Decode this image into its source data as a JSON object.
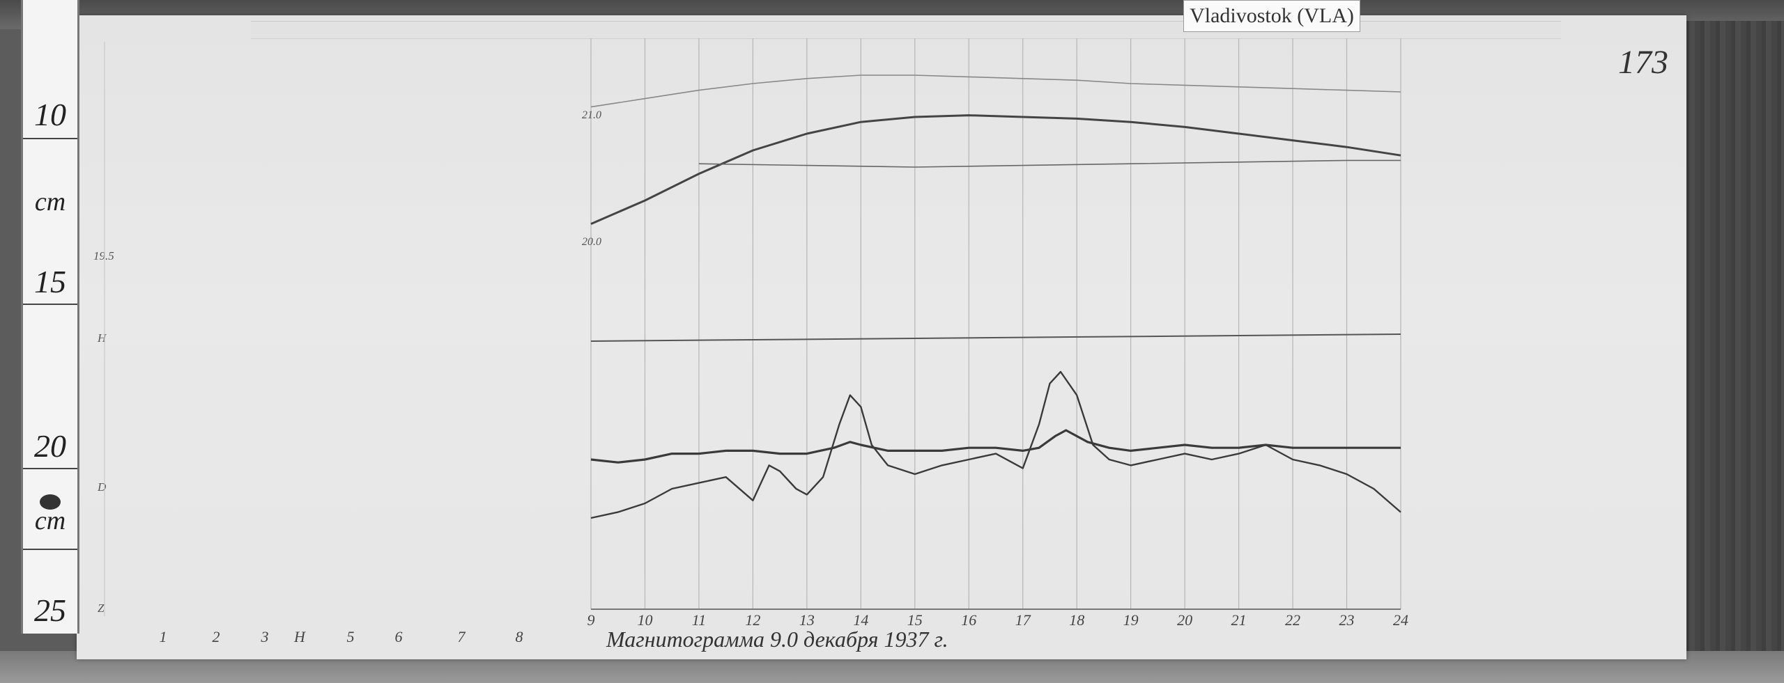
{
  "station": {
    "label": "Vladivostok (VLA)"
  },
  "page_number": "173",
  "caption": "Магнитограмма 9.0 декабря 1937 г.",
  "ruler": {
    "numbers": [
      "10",
      "15",
      "20",
      "25"
    ],
    "unit": "cm"
  },
  "margin_notes": {
    "z_scale": "19.5",
    "h_label": "H",
    "d_label": "D",
    "z_label": "Z"
  },
  "chart_data": {
    "type": "line",
    "title": "",
    "xlabel": "",
    "ylabel": "",
    "x_ticks": [
      "1",
      "2",
      "3",
      "H",
      "5",
      "6",
      "7",
      "8",
      "9",
      "10",
      "11",
      "12",
      "13",
      "14",
      "15",
      "16",
      "17",
      "18",
      "19",
      "20",
      "21",
      "22",
      "23",
      "24"
    ],
    "xlim": [
      9,
      24
    ],
    "panels": [
      {
        "name": "upper",
        "scale_labels": [
          "21.0",
          "20.0"
        ],
        "series": [
          {
            "x": [
              9,
              10,
              11,
              12,
              13,
              14,
              15,
              16,
              17,
              18,
              19,
              20,
              21,
              22,
              23,
              24
            ],
            "y": [
              0.16,
              0.3,
              0.46,
              0.6,
              0.7,
              0.77,
              0.8,
              0.81,
              0.8,
              0.79,
              0.77,
              0.74,
              0.7,
              0.66,
              0.62,
              0.57
            ]
          },
          {
            "x": [
              9,
              10,
              11,
              12,
              13,
              14,
              15,
              16,
              17,
              18,
              19,
              20,
              21,
              22,
              23,
              24
            ],
            "y": [
              0.86,
              0.91,
              0.96,
              1.0,
              1.03,
              1.05,
              1.05,
              1.04,
              1.03,
              1.02,
              1.0,
              0.99,
              0.98,
              0.97,
              0.96,
              0.95
            ]
          },
          {
            "x": [
              11,
              13,
              15,
              17,
              19,
              21,
              23,
              24
            ],
            "y": [
              0.52,
              0.51,
              0.5,
              0.51,
              0.52,
              0.53,
              0.54,
              0.54
            ]
          }
        ]
      },
      {
        "name": "lower",
        "series": [
          {
            "x": [
              9,
              9.5,
              10,
              10.5,
              11,
              11.5,
              12,
              12.5,
              13,
              13.5,
              13.8,
              14,
              14.5,
              15,
              15.5,
              16,
              16.5,
              17,
              17.3,
              17.6,
              17.8,
              18.2,
              18.6,
              19,
              19.5,
              20,
              20.5,
              21,
              21.5,
              22,
              22.5,
              23,
              23.5,
              24
            ],
            "y": [
              0.5,
              0.49,
              0.5,
              0.52,
              0.52,
              0.53,
              0.53,
              0.52,
              0.52,
              0.54,
              0.56,
              0.55,
              0.53,
              0.53,
              0.53,
              0.54,
              0.54,
              0.53,
              0.54,
              0.58,
              0.6,
              0.56,
              0.54,
              0.53,
              0.54,
              0.55,
              0.54,
              0.54,
              0.55,
              0.54,
              0.54,
              0.54,
              0.54,
              0.54
            ]
          },
          {
            "x": [
              9,
              9.5,
              10,
              10.5,
              11,
              11.5,
              12,
              12.3,
              12.5,
              12.8,
              13,
              13.3,
              13.6,
              13.8,
              14,
              14.2,
              14.5,
              15,
              15.5,
              16,
              16.5,
              17,
              17.3,
              17.5,
              17.7,
              18,
              18.3,
              18.6,
              19,
              19.5,
              20,
              20.5,
              21,
              21.5,
              22,
              22.5,
              23,
              23.5,
              24
            ],
            "y": [
              0.3,
              0.32,
              0.35,
              0.4,
              0.42,
              0.44,
              0.36,
              0.48,
              0.46,
              0.4,
              0.38,
              0.44,
              0.62,
              0.72,
              0.68,
              0.55,
              0.48,
              0.45,
              0.48,
              0.5,
              0.52,
              0.47,
              0.62,
              0.76,
              0.8,
              0.72,
              0.55,
              0.5,
              0.48,
              0.5,
              0.52,
              0.5,
              0.52,
              0.55,
              0.5,
              0.48,
              0.45,
              0.4,
              0.32
            ]
          }
        ]
      }
    ]
  }
}
